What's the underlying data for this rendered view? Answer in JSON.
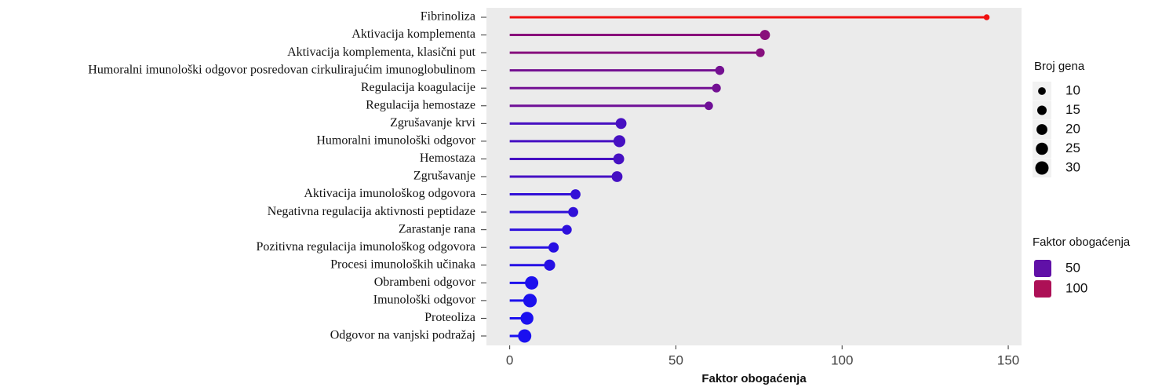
{
  "chart_data": {
    "type": "lollipop",
    "x_label": "Faktor obogaćenja",
    "categories": [
      "Fibrinoliza",
      "Aktivacija komplementa",
      "Aktivacija komplementa, klasični put",
      "Humoralni imunološki odgovor posredovan cirkulirajućim imunoglobulinom",
      "Regulacija koagulacije",
      "Regulacija hemostaze",
      "Zgrušavanje krvi",
      "Humoralni imunološki odgovor",
      "Hemostaza",
      "Zgrušavanje",
      "Aktivacija imunološkog odgovora",
      "Negativna regulacija aktivnosti peptidaze",
      "Zarastanje rana",
      "Pozitivna regulacija imunološkog odgovora",
      "Procesi imunoloških učinaka",
      "Obrambeni odgovor",
      "Imunološki odgovor",
      "Proteoliza",
      "Odgovor na vanjski podražaj"
    ],
    "values": [
      143.5,
      76.8,
      75.4,
      63.2,
      62.2,
      59.9,
      33.5,
      33.0,
      32.8,
      32.3,
      19.8,
      19.1,
      17.2,
      13.2,
      12.0,
      6.6,
      6.1,
      5.2,
      4.5
    ],
    "sizes": [
      6,
      17,
      13,
      14,
      13,
      12,
      20,
      24,
      20,
      20,
      17,
      17,
      16,
      18,
      21,
      30,
      31,
      28,
      30
    ],
    "xlim": [
      -7,
      154
    ],
    "xticks": [
      0,
      50,
      100,
      150
    ],
    "color_low": "#1a10f0",
    "color_high": "#f01010",
    "size_legend": {
      "title": "Broj gena",
      "values": [
        10,
        15,
        20,
        25,
        30
      ]
    },
    "color_legend": {
      "title": "Faktor obogaćenja",
      "values": [
        50,
        100
      ]
    },
    "grid": false
  }
}
